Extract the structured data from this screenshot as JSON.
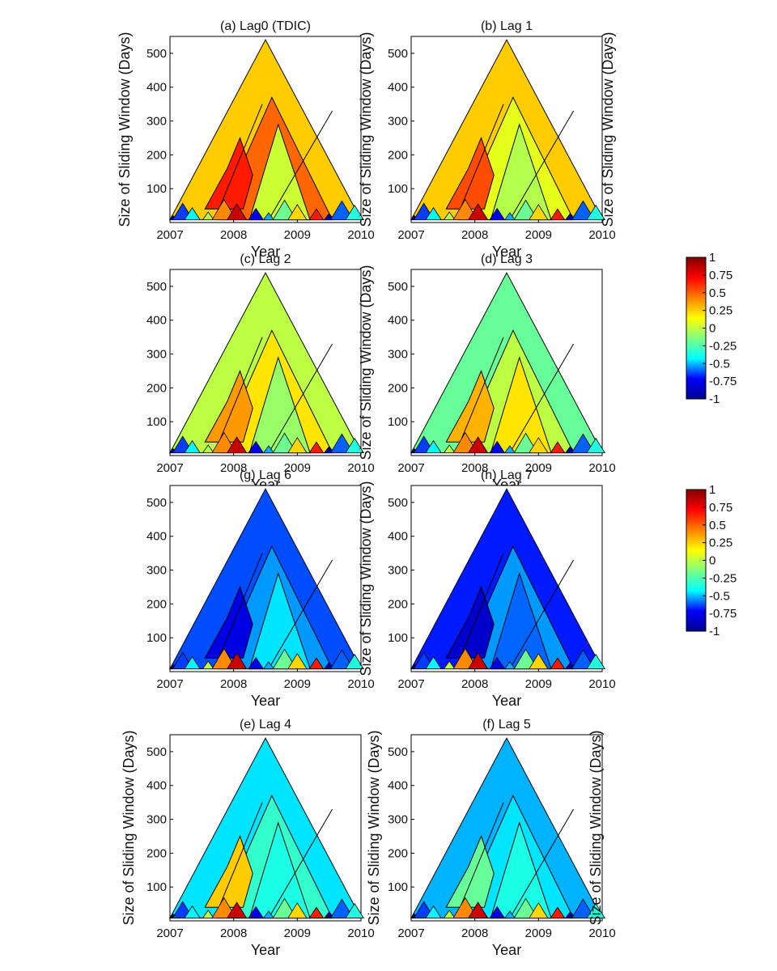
{
  "chart_data": {
    "type": "heatmap",
    "figure_description_units": "time-dependent intrinsic correlation vs. window size",
    "x_ticks": [
      "2007",
      "2008",
      "2009",
      "2010"
    ],
    "y_ticks": [
      "100",
      "200",
      "300",
      "400",
      "500"
    ],
    "x_label": "Year",
    "y_label": "Size of Sliding Window (Days)",
    "xlim": [
      2007,
      2010
    ],
    "ylim": [
      0,
      550
    ],
    "colorscale": {
      "ticks": [
        "1",
        "0.75",
        "0.5",
        "0.25",
        "0",
        "-0.25",
        "-0.5",
        "-0.75",
        "-1"
      ],
      "range": [
        -1,
        1
      ],
      "stops": [
        "#00008f",
        "#0000ff",
        "#00ffff",
        "#80ff80",
        "#ffff00",
        "#ff8000",
        "#ff0000",
        "#800000"
      ]
    },
    "panels": [
      {
        "id": "a",
        "title": "(a) Lag0 (TDIC)",
        "dominant": 0.35,
        "inner": 0.55,
        "core": 0.15,
        "patch": 0.7
      },
      {
        "id": "b",
        "title": "(b) Lag 1",
        "dominant": 0.35,
        "inner": 0.2,
        "core": 0.1,
        "patch": 0.6
      },
      {
        "id": "c",
        "title": "(c) Lag 2",
        "dominant": 0.12,
        "inner": 0.3,
        "core": 0.05,
        "patch": 0.45
      },
      {
        "id": "d",
        "title": "(d) Lag 3",
        "dominant": -0.05,
        "inner": 0.12,
        "core": 0.3,
        "patch": 0.4
      },
      {
        "id": "g",
        "title": "(g) Lag 6",
        "dominant": -0.6,
        "inner": -0.45,
        "core": -0.3,
        "patch": -0.8
      },
      {
        "id": "h",
        "title": "(h) Lag 7",
        "dominant": -0.7,
        "inner": -0.45,
        "core": -0.55,
        "patch": -0.85
      },
      {
        "id": "e",
        "title": "(e) Lag 4",
        "dominant": -0.3,
        "inner": -0.15,
        "core": -0.2,
        "patch": 0.35
      },
      {
        "id": "f",
        "title": "(f) Lag 5",
        "dominant": -0.4,
        "inner": -0.3,
        "core": -0.2,
        "patch": -0.05
      }
    ]
  }
}
